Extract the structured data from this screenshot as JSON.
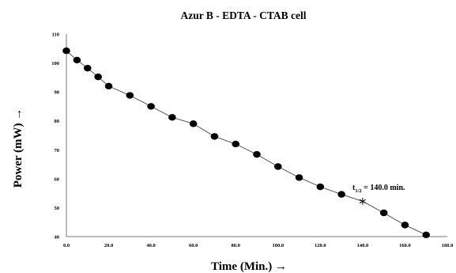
{
  "chart_data": {
    "type": "line",
    "title": "Azur B - EDTA - CTAB cell",
    "xlabel": "Time (Min.) →",
    "ylabel": "Power (mW) →",
    "xlim": [
      0,
      180
    ],
    "ylim": [
      40,
      110
    ],
    "x_ticks": [
      "0.0",
      "20.0",
      "40.0",
      "60.0",
      "80.0",
      "100.0",
      "120.0",
      "140.0",
      "160.0",
      "180.0"
    ],
    "y_ticks": [
      "40",
      "50",
      "60",
      "70",
      "80",
      "90",
      "100",
      "110"
    ],
    "series": [
      {
        "x": [
          0,
          5,
          10,
          15,
          20,
          30,
          40,
          50,
          60,
          70,
          80,
          90,
          100,
          110,
          120,
          130,
          150,
          160,
          170
        ],
        "y": [
          104.2,
          101.0,
          98.2,
          95.2,
          92.0,
          88.8,
          85.0,
          81.2,
          79.0,
          74.6,
          72.0,
          68.4,
          64.2,
          60.4,
          57.2,
          54.6,
          48.2,
          44.0,
          40.6
        ]
      }
    ],
    "annotations": [
      {
        "x": 140,
        "y": 52.2,
        "marker": "star",
        "text_main": "t",
        "text_sub": "1/2",
        "text_rest": " = 140.0 min."
      }
    ],
    "line_color": "#555555",
    "marker_color": "#000000",
    "grid": false
  }
}
